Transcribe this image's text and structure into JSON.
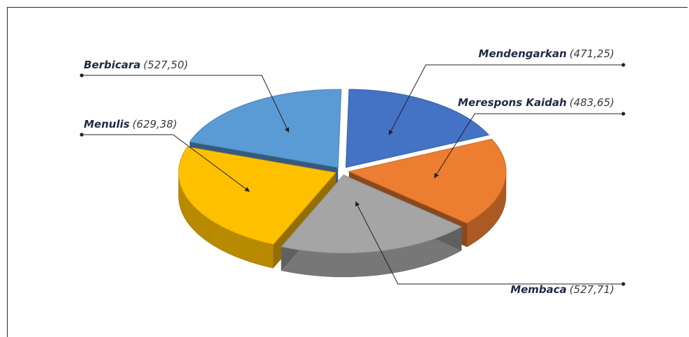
{
  "chart_data": {
    "type": "pie",
    "title": "",
    "slices": [
      {
        "label": "Mendengarkan",
        "value_text": "(471,25)",
        "value": 471.25,
        "color": "#4472C4"
      },
      {
        "label": "Merespons Kaidah",
        "value_text": "(483,65)",
        "value": 483.65,
        "color": "#ED7D31"
      },
      {
        "label": "Membaca",
        "value_text": "(527,71)",
        "value": 527.71,
        "color": "#A5A5A5"
      },
      {
        "label": "Menulis",
        "value_text": "(629,38)",
        "value": 629.38,
        "color": "#FFC000"
      },
      {
        "label": "Berbicara",
        "value_text": "(527,50)",
        "value": 527.5,
        "color": "#5B9BD5"
      }
    ],
    "style": "3d-exploded",
    "legend": "none"
  }
}
